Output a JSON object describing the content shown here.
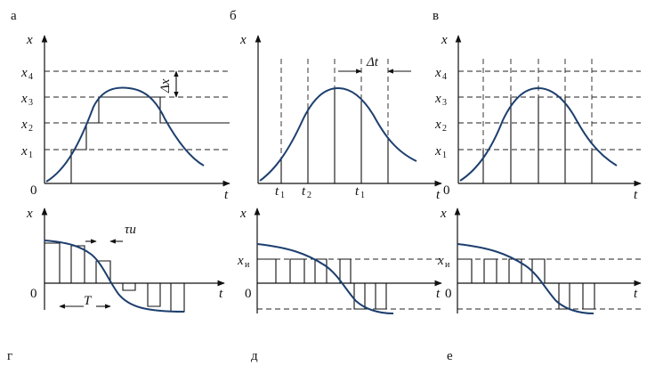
{
  "panels": {
    "a": {
      "letter": "а",
      "y_axis": "x",
      "x_axis": "t",
      "origin": "0",
      "levels": [
        "x1",
        "x2",
        "x3",
        "x4"
      ],
      "delta": "Δx"
    },
    "b": {
      "letter": "б",
      "y_axis": "x",
      "x_axis": "t",
      "times": [
        "t1",
        "t2",
        "t1"
      ],
      "delta": "Δt"
    },
    "c": {
      "letter": "в",
      "y_axis": "x",
      "x_axis": "t",
      "origin": "0",
      "levels": [
        "x1",
        "x2",
        "x3",
        "x4"
      ]
    },
    "d": {
      "letter": "г",
      "y_axis": "x",
      "x_axis": "t",
      "origin": "0",
      "period": "T",
      "tau": "τи"
    },
    "e": {
      "letter": "д",
      "y_axis": "x",
      "x_axis": "t",
      "origin": "0",
      "level": "xи"
    },
    "f": {
      "letter": "е",
      "y_axis": "x",
      "x_axis": "t",
      "origin": "0",
      "level": "xи"
    }
  }
}
